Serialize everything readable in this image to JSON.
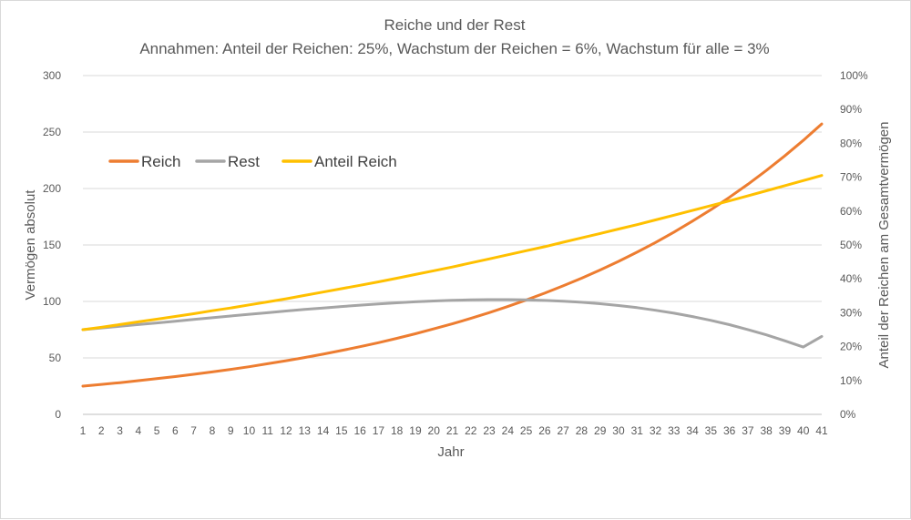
{
  "chart_data": {
    "type": "line",
    "title": "Reiche und der Rest",
    "subtitle": "Annahmen: Anteil der Reichen: 25%, Wachstum der Reichen = 6%, Wachstum für alle = 3%",
    "xlabel": "Jahr",
    "ylabel": "Vermögen absolut",
    "y2label": "Anteil der Reichen am Gesamtvermögen",
    "x": [
      1,
      2,
      3,
      4,
      5,
      6,
      7,
      8,
      9,
      10,
      11,
      12,
      13,
      14,
      15,
      16,
      17,
      18,
      19,
      20,
      21,
      22,
      23,
      24,
      25,
      26,
      27,
      28,
      29,
      30,
      31,
      32,
      33,
      34,
      35,
      36,
      37,
      38,
      39,
      40,
      41
    ],
    "ylim": [
      0,
      300
    ],
    "yticks": [
      0,
      50,
      100,
      150,
      200,
      250,
      300
    ],
    "y2lim": [
      0,
      1
    ],
    "y2ticks": [
      "0%",
      "10%",
      "20%",
      "30%",
      "40%",
      "50%",
      "60%",
      "70%",
      "80%",
      "90%",
      "100%"
    ],
    "grid": true,
    "legend_position": "top-left",
    "series": [
      {
        "name": "Reich",
        "axis": "left",
        "color": "#ED7D31",
        "values": [
          25.0,
          26.5,
          28.1,
          29.8,
          31.6,
          33.5,
          35.5,
          37.6,
          39.8,
          42.2,
          44.8,
          47.5,
          50.3,
          53.3,
          56.5,
          59.9,
          63.5,
          67.3,
          71.4,
          75.7,
          80.2,
          85.0,
          90.1,
          95.5,
          101.3,
          107.3,
          113.8,
          120.6,
          127.8,
          135.5,
          143.6,
          152.2,
          161.4,
          171.1,
          181.3,
          192.2,
          203.7,
          216.0,
          228.9,
          242.6,
          257.2
        ]
      },
      {
        "name": "Rest",
        "axis": "left",
        "color": "#A5A5A5",
        "values": [
          75.0,
          76.5,
          78.0,
          79.5,
          81.0,
          82.5,
          84.0,
          85.6,
          87.1,
          88.6,
          90.0,
          91.5,
          92.9,
          94.2,
          95.5,
          96.7,
          97.8,
          98.8,
          99.7,
          100.4,
          101.0,
          101.4,
          101.6,
          101.6,
          101.4,
          100.9,
          100.2,
          99.3,
          98.0,
          96.4,
          94.5,
          92.2,
          89.6,
          86.6,
          83.2,
          79.4,
          75.1,
          70.4,
          65.2,
          59.6,
          69.0
        ]
      },
      {
        "name": "Anteil Reich",
        "axis": "right",
        "color": "#FFC000",
        "values": [
          0.25,
          0.257,
          0.265,
          0.273,
          0.281,
          0.289,
          0.297,
          0.306,
          0.314,
          0.323,
          0.332,
          0.341,
          0.351,
          0.361,
          0.371,
          0.381,
          0.391,
          0.402,
          0.413,
          0.424,
          0.435,
          0.447,
          0.459,
          0.471,
          0.483,
          0.495,
          0.508,
          0.521,
          0.534,
          0.547,
          0.56,
          0.574,
          0.588,
          0.602,
          0.616,
          0.63,
          0.645,
          0.66,
          0.675,
          0.69,
          0.705
        ]
      }
    ]
  }
}
